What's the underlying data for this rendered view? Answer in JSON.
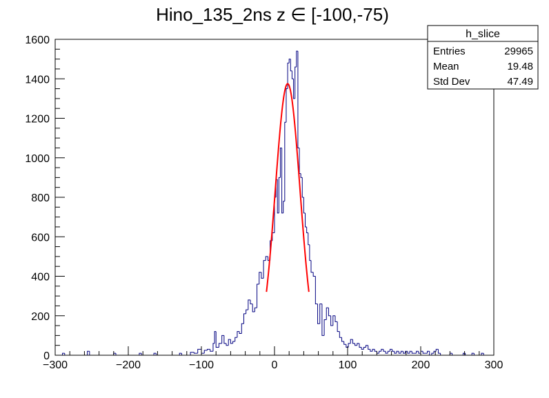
{
  "title": "Hino_135_2ns z  ∈ [-100,-75)",
  "stats_box": {
    "name": "h_slice",
    "rows": [
      {
        "label": "Entries",
        "value": "29965"
      },
      {
        "label": "Mean",
        "value": "19.48"
      },
      {
        "label": "Std Dev",
        "value": "47.49"
      }
    ]
  },
  "colors": {
    "histogram": "#000080",
    "fit": "#ff0000",
    "frame": "#000000",
    "background": "#ffffff"
  },
  "chart_data": {
    "type": "histogram",
    "xlim": [
      -300,
      300
    ],
    "ylim": [
      0,
      1600
    ],
    "grid": false,
    "legend": "top-right",
    "x_ticks": [
      -300,
      -200,
      -100,
      0,
      100,
      200,
      300
    ],
    "x_tick_labels": [
      "−300",
      "−200",
      "−100",
      "0",
      "100",
      "200",
      "300"
    ],
    "y_ticks": [
      0,
      200,
      400,
      600,
      800,
      1000,
      1200,
      1400,
      1600
    ],
    "y_tick_labels": [
      "0",
      "200",
      "400",
      "600",
      "800",
      "1000",
      "1200",
      "1400",
      "1600"
    ],
    "bin_width": 3,
    "bins": [
      [
        -299,
        0
      ],
      [
        -290,
        10
      ],
      [
        -287,
        0
      ],
      [
        -256,
        20
      ],
      [
        -253,
        0
      ],
      [
        -220,
        10
      ],
      [
        -217,
        0
      ],
      [
        -185,
        10
      ],
      [
        -182,
        0
      ],
      [
        -165,
        10
      ],
      [
        -162,
        0
      ],
      [
        -130,
        10
      ],
      [
        -127,
        0
      ],
      [
        -115,
        15
      ],
      [
        -110,
        10
      ],
      [
        -105,
        30
      ],
      [
        -100,
        10
      ],
      [
        -96,
        25
      ],
      [
        -92,
        30
      ],
      [
        -88,
        20
      ],
      [
        -84,
        60
      ],
      [
        -82,
        120
      ],
      [
        -80,
        40
      ],
      [
        -76,
        60
      ],
      [
        -72,
        100
      ],
      [
        -69,
        60
      ],
      [
        -66,
        50
      ],
      [
        -63,
        80
      ],
      [
        -60,
        60
      ],
      [
        -57,
        70
      ],
      [
        -54,
        90
      ],
      [
        -51,
        120
      ],
      [
        -48,
        110
      ],
      [
        -45,
        160
      ],
      [
        -42,
        210
      ],
      [
        -39,
        230
      ],
      [
        -36,
        280
      ],
      [
        -33,
        260
      ],
      [
        -30,
        220
      ],
      [
        -27,
        240
      ],
      [
        -24,
        360
      ],
      [
        -21,
        420
      ],
      [
        -18,
        390
      ],
      [
        -15,
        480
      ],
      [
        -12,
        500
      ],
      [
        -9,
        480
      ],
      [
        -6,
        580
      ],
      [
        -3,
        620
      ],
      [
        0,
        800
      ],
      [
        2,
        890
      ],
      [
        4,
        720
      ],
      [
        6,
        900
      ],
      [
        8,
        1050
      ],
      [
        10,
        720
      ],
      [
        12,
        780
      ],
      [
        14,
        1180
      ],
      [
        16,
        1350
      ],
      [
        18,
        1480
      ],
      [
        20,
        1500
      ],
      [
        22,
        1440
      ],
      [
        24,
        1400
      ],
      [
        26,
        1300
      ],
      [
        28,
        1460
      ],
      [
        30,
        1540
      ],
      [
        32,
        1050
      ],
      [
        34,
        920
      ],
      [
        36,
        900
      ],
      [
        38,
        800
      ],
      [
        40,
        720
      ],
      [
        42,
        650
      ],
      [
        44,
        620
      ],
      [
        46,
        560
      ],
      [
        48,
        480
      ],
      [
        50,
        420
      ],
      [
        53,
        400
      ],
      [
        56,
        260
      ],
      [
        59,
        160
      ],
      [
        62,
        260
      ],
      [
        65,
        100
      ],
      [
        68,
        180
      ],
      [
        71,
        240
      ],
      [
        74,
        200
      ],
      [
        77,
        150
      ],
      [
        80,
        200
      ],
      [
        83,
        170
      ],
      [
        86,
        120
      ],
      [
        89,
        90
      ],
      [
        92,
        70
      ],
      [
        95,
        55
      ],
      [
        98,
        40
      ],
      [
        101,
        60
      ],
      [
        104,
        80
      ],
      [
        107,
        60
      ],
      [
        110,
        50
      ],
      [
        113,
        60
      ],
      [
        116,
        40
      ],
      [
        119,
        30
      ],
      [
        122,
        40
      ],
      [
        125,
        50
      ],
      [
        128,
        30
      ],
      [
        131,
        20
      ],
      [
        134,
        30
      ],
      [
        137,
        20
      ],
      [
        140,
        10
      ],
      [
        143,
        20
      ],
      [
        146,
        30
      ],
      [
        149,
        20
      ],
      [
        152,
        10
      ],
      [
        155,
        20
      ],
      [
        158,
        30
      ],
      [
        161,
        20
      ],
      [
        164,
        10
      ],
      [
        167,
        20
      ],
      [
        170,
        10
      ],
      [
        173,
        20
      ],
      [
        176,
        10
      ],
      [
        179,
        20
      ],
      [
        182,
        10
      ],
      [
        185,
        20
      ],
      [
        188,
        10
      ],
      [
        191,
        10
      ],
      [
        194,
        20
      ],
      [
        197,
        10
      ],
      [
        200,
        20
      ],
      [
        203,
        10
      ],
      [
        206,
        10
      ],
      [
        209,
        20
      ],
      [
        212,
        0
      ],
      [
        215,
        10
      ],
      [
        218,
        20
      ],
      [
        221,
        30
      ],
      [
        224,
        10
      ],
      [
        227,
        0
      ],
      [
        240,
        10
      ],
      [
        243,
        0
      ],
      [
        258,
        10
      ],
      [
        261,
        0
      ],
      [
        270,
        10
      ],
      [
        273,
        0
      ],
      [
        283,
        10
      ],
      [
        286,
        0
      ],
      [
        300,
        0
      ]
    ],
    "fit": {
      "type": "gaussian",
      "amplitude": 1375,
      "mean": 18,
      "sigma": 17,
      "x_range": [
        -11,
        47
      ]
    }
  }
}
